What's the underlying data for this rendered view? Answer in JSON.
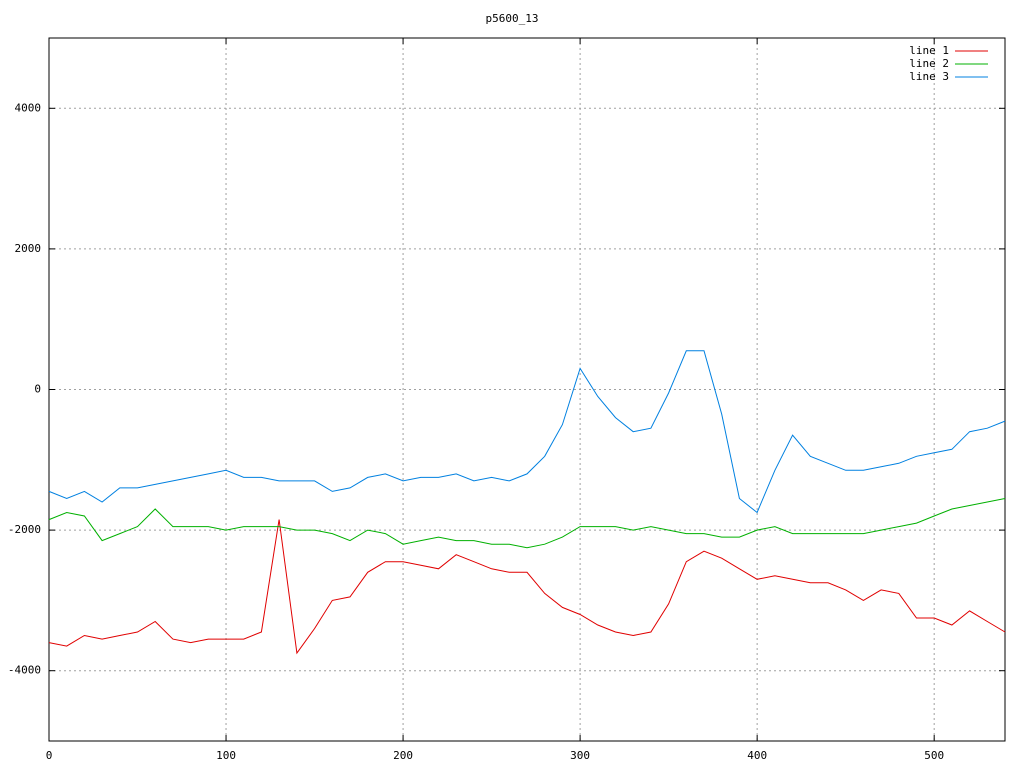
{
  "chart_data": {
    "type": "line",
    "title": "p5600_13",
    "x": [
      0,
      10,
      20,
      30,
      40,
      50,
      60,
      70,
      80,
      90,
      100,
      110,
      120,
      130,
      140,
      150,
      160,
      170,
      180,
      190,
      200,
      210,
      220,
      230,
      240,
      250,
      260,
      270,
      280,
      290,
      300,
      310,
      320,
      330,
      340,
      350,
      360,
      370,
      380,
      390,
      400,
      410,
      420,
      430,
      440,
      450,
      460,
      470,
      480,
      490,
      500,
      510,
      520,
      530,
      540
    ],
    "series": [
      {
        "name": "line 1",
        "color": "#e00000",
        "values": [
          -3600,
          -3650,
          -3500,
          -3550,
          -3500,
          -3450,
          -3300,
          -3550,
          -3600,
          -3550,
          -3550,
          -3550,
          -3450,
          -1850,
          -3750,
          -3400,
          -3000,
          -2950,
          -2600,
          -2450,
          -2450,
          -2500,
          -2550,
          -2350,
          -2450,
          -2550,
          -2600,
          -2600,
          -2900,
          -3100,
          -3200,
          -3350,
          -3450,
          -3500,
          -3450,
          -3050,
          -2450,
          -2300,
          -2400,
          -2550,
          -2700,
          -2650,
          -2700,
          -2750,
          -2750,
          -2850,
          -3000,
          -2850,
          -2900,
          -3250,
          -3250,
          -3350,
          -3150,
          -3300,
          -3450
        ]
      },
      {
        "name": "line 2",
        "color": "#00b000",
        "values": [
          -1850,
          -1750,
          -1800,
          -2150,
          -2050,
          -1950,
          -1700,
          -1950,
          -1950,
          -1950,
          -2000,
          -1950,
          -1950,
          -1950,
          -2000,
          -2000,
          -2050,
          -2150,
          -2000,
          -2050,
          -2200,
          -2150,
          -2100,
          -2150,
          -2150,
          -2200,
          -2200,
          -2250,
          -2200,
          -2100,
          -1950,
          -1950,
          -1950,
          -2000,
          -1950,
          -2000,
          -2050,
          -2050,
          -2100,
          -2100,
          -2000,
          -1950,
          -2050,
          -2050,
          -2050,
          -2050,
          -2050,
          -2000,
          -1950,
          -1900,
          -1800,
          -1700,
          -1650,
          -1600,
          -1550
        ]
      },
      {
        "name": "line 3",
        "color": "#0080e0",
        "values": [
          -1450,
          -1550,
          -1450,
          -1600,
          -1400,
          -1400,
          -1350,
          -1300,
          -1250,
          -1200,
          -1150,
          -1250,
          -1250,
          -1300,
          -1300,
          -1300,
          -1450,
          -1400,
          -1250,
          -1200,
          -1300,
          -1250,
          -1250,
          -1200,
          -1300,
          -1250,
          -1300,
          -1200,
          -950,
          -500,
          300,
          -100,
          -400,
          -600,
          -550,
          -50,
          550,
          550,
          -350,
          -1550,
          -1750,
          -1150,
          -650,
          -950,
          -1050,
          -1150,
          -1150,
          -1100,
          -1050,
          -950,
          -900,
          -850,
          -600,
          -550,
          -450
        ]
      }
    ],
    "xlim": [
      0,
      540
    ],
    "xticks": [
      0,
      100,
      200,
      300,
      400,
      500
    ],
    "ylim": [
      -5000,
      5000
    ],
    "yticks": [
      -4000,
      -2000,
      0,
      2000,
      4000
    ],
    "grid": true,
    "legend": "top-right"
  }
}
